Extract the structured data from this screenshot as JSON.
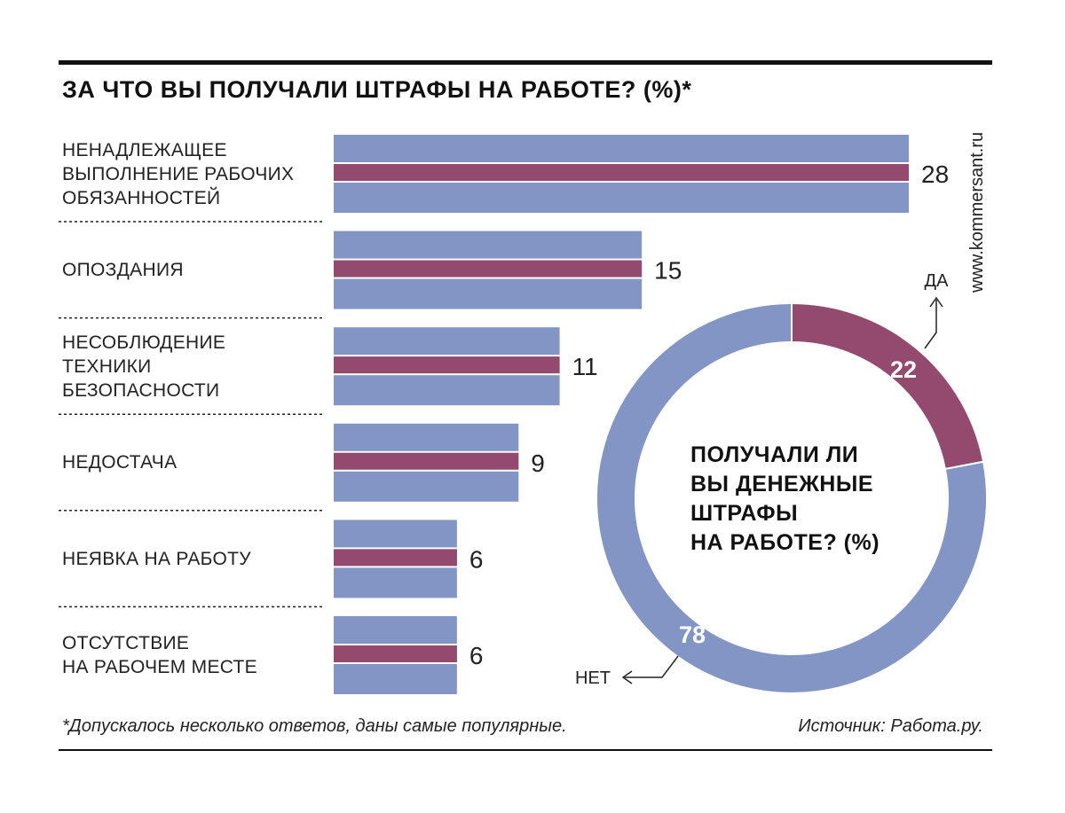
{
  "title": "ЗА ЧТО ВЫ ПОЛУЧАЛИ ШТРАФЫ НА РАБОТЕ? (%)*",
  "site": "www.kommersant.ru",
  "footnote": "*Допускалось несколько ответов, даны самые популярные.",
  "source": "Источник: Работа.ру.",
  "colors": {
    "bar": "#8395c4",
    "accent": "#934a6e",
    "text": "#1a1a1a"
  },
  "chart_data": [
    {
      "type": "bar",
      "orientation": "horizontal",
      "title": "ЗА ЧТО ВЫ ПОЛУЧАЛИ ШТРАФЫ НА РАБОТЕ? (%)*",
      "categories": [
        [
          "НЕНАДЛЕЖАЩЕЕ",
          "ВЫПОЛНЕНИЕ РАБОЧИХ",
          "ОБЯЗАННОСТЕЙ"
        ],
        [
          "ОПОЗДАНИЯ"
        ],
        [
          "НЕСОБЛЮДЕНИЕ",
          "ТЕХНИКИ",
          "БЕЗОПАСНОСТИ"
        ],
        [
          "НЕДОСТАЧА"
        ],
        [
          "НЕЯВКА НА РАБОТУ"
        ],
        [
          "ОТСУТСТВИЕ",
          "НА РАБОЧЕМ МЕСТЕ"
        ]
      ],
      "values": [
        28,
        15,
        11,
        9,
        6,
        6
      ],
      "value_labels": [
        "28",
        "15",
        "11",
        "9",
        "6",
        "6"
      ],
      "xlim": [
        0,
        28
      ]
    },
    {
      "type": "pie",
      "style": "donut",
      "title": "ПОЛУЧАЛИ ЛИ ВЫ ДЕНЕЖНЫЕ ШТРАФЫ НА РАБОТЕ? (%)",
      "title_lines": [
        "ПОЛУЧАЛИ ЛИ",
        "ВЫ ДЕНЕЖНЫЕ",
        "ШТРАФЫ",
        "НА РАБОТЕ? (%)"
      ],
      "slices": [
        {
          "label": "ДА",
          "value": 22,
          "value_label": "22",
          "color": "#934a6e"
        },
        {
          "label": "НЕТ",
          "value": 78,
          "value_label": "78",
          "color": "#8395c4"
        }
      ]
    }
  ]
}
